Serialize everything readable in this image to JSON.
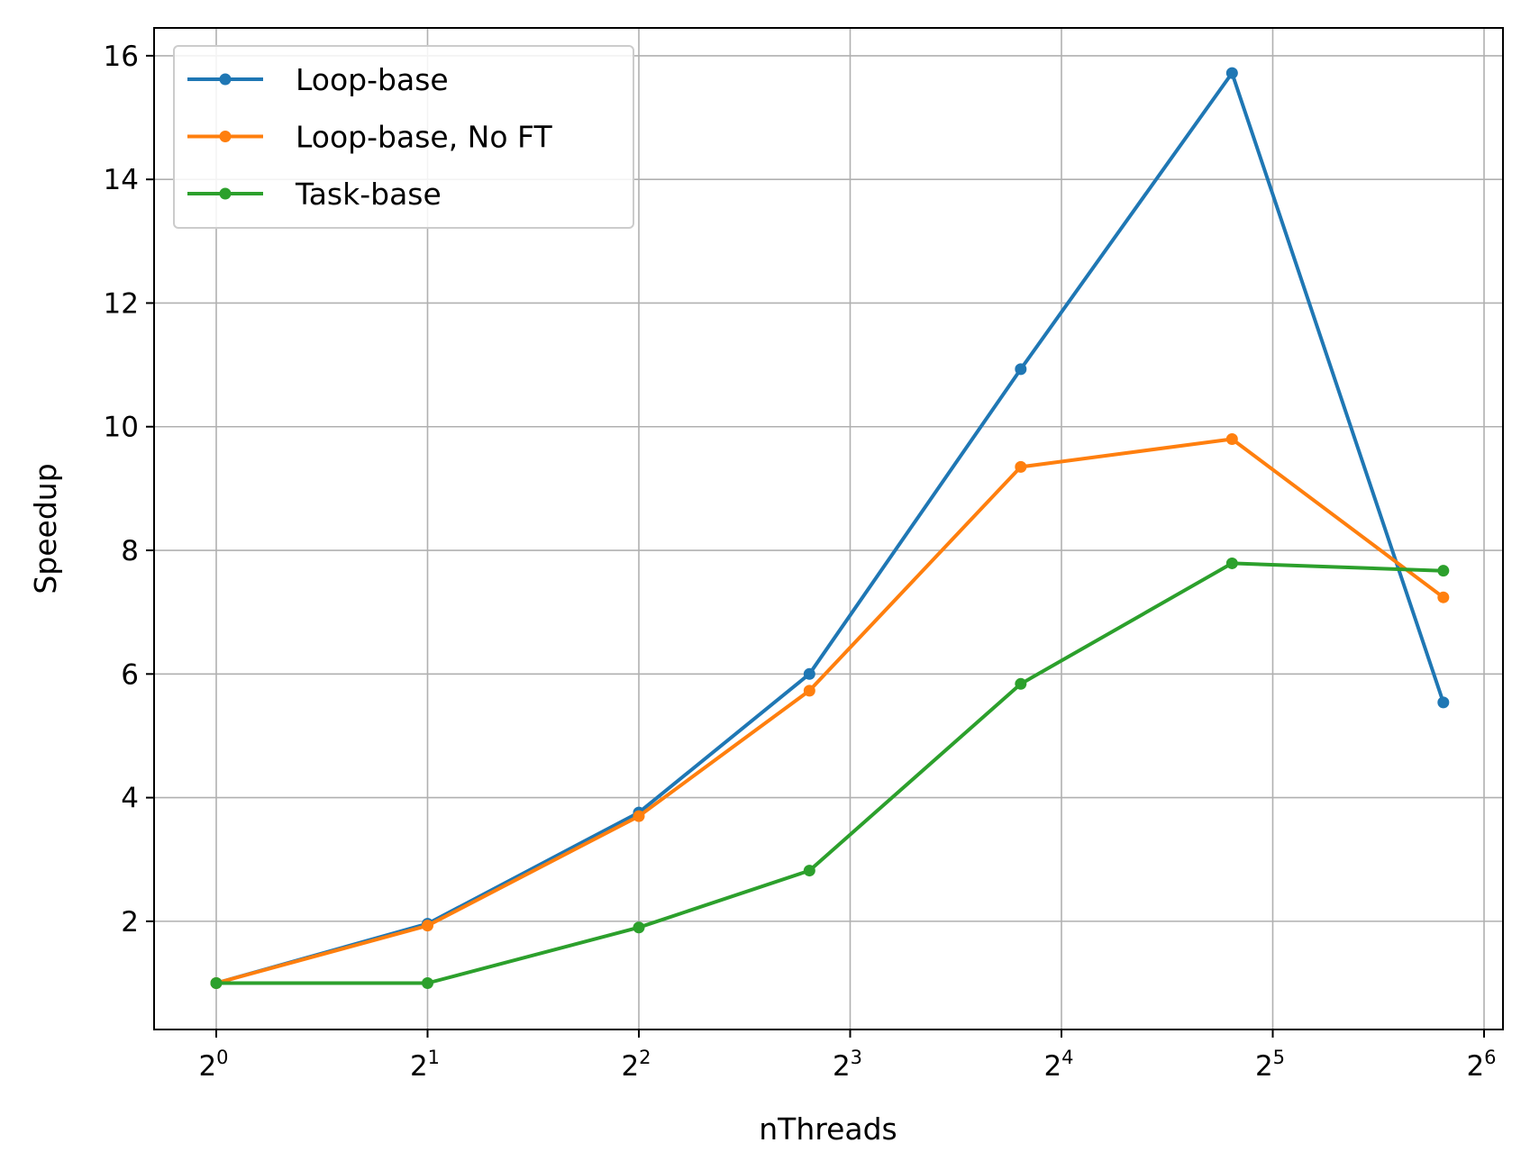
{
  "chart_data": {
    "type": "line",
    "title": "",
    "xlabel": "nThreads",
    "ylabel": "Speedup",
    "xscale": "log2",
    "x": [
      1,
      2,
      4,
      7,
      14,
      28,
      56
    ],
    "xticks": [
      {
        "base": "2",
        "exp": "0"
      },
      {
        "base": "2",
        "exp": "1"
      },
      {
        "base": "2",
        "exp": "2"
      },
      {
        "base": "2",
        "exp": "3"
      },
      {
        "base": "2",
        "exp": "4"
      },
      {
        "base": "2",
        "exp": "5"
      },
      {
        "base": "2",
        "exp": "6"
      }
    ],
    "yticks": [
      "2",
      "4",
      "6",
      "8",
      "10",
      "12",
      "14",
      "16"
    ],
    "ylim": [
      0.25,
      16.45
    ],
    "grid": true,
    "legend_position": "upper-left",
    "series": [
      {
        "name": "Loop-base",
        "color": "#1f77b4",
        "values": [
          1.0,
          1.96,
          3.76,
          6.0,
          10.93,
          15.72,
          5.54
        ]
      },
      {
        "name": "Loop-base, No FT",
        "color": "#ff7f0e",
        "values": [
          1.0,
          1.93,
          3.7,
          5.73,
          9.35,
          9.8,
          7.24
        ]
      },
      {
        "name": "Task-base",
        "color": "#2ca02c",
        "values": [
          1.0,
          1.0,
          1.9,
          2.82,
          5.84,
          7.79,
          7.67
        ]
      }
    ]
  }
}
